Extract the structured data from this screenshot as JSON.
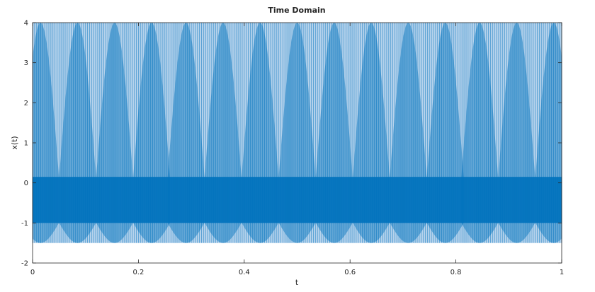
{
  "chart_data": {
    "type": "line",
    "title": "Time Domain",
    "xlabel": "t",
    "ylabel": "x(t)",
    "xlim": [
      0,
      1
    ],
    "ylim": [
      -2,
      4
    ],
    "xticks": [
      0,
      0.2,
      0.4,
      0.6,
      0.8,
      1
    ],
    "xtick_labels": [
      "0",
      "0.2",
      "0.4",
      "0.6",
      "0.8",
      "1"
    ],
    "yticks": [
      -2,
      -1,
      0,
      1,
      2,
      3,
      4
    ],
    "ytick_labels": [
      "-2",
      "-1",
      "0",
      "1",
      "2",
      "3",
      "4"
    ],
    "grid": false,
    "legend": "none",
    "line_color": "#0072bd",
    "series": [
      {
        "description_of_shape": "dense oscillating signal, bounded approximately between -1.5 and 4",
        "signal_min": -1.5,
        "signal_max": 4.0,
        "envelope_period": 0.0695,
        "envelope_lobe_peaks_t": [
          0.015,
          0.085,
          0.155,
          0.225,
          0.29,
          0.36,
          0.43,
          0.5,
          0.57,
          0.64,
          0.71,
          0.78,
          0.845,
          0.915,
          0.985
        ],
        "dense_band": [
          -1.0,
          0.15
        ],
        "carrier_cycles_visible": 260
      }
    ]
  }
}
